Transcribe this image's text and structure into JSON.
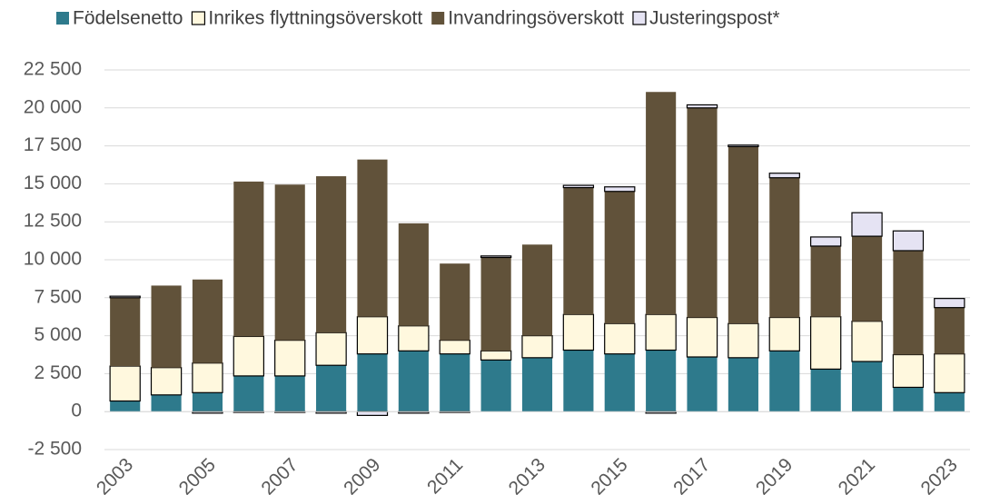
{
  "chart_data": {
    "type": "stacked_bar",
    "categories": [
      "2003",
      null,
      "2005",
      null,
      "2007",
      null,
      "2009",
      null,
      "2011",
      null,
      "2013",
      null,
      "2015",
      null,
      "2017",
      null,
      "2019",
      null,
      "2021",
      null,
      "2023"
    ],
    "series": [
      {
        "name": "Födelsenetto",
        "color": "#2e7a8c",
        "values": [
          700,
          1100,
          1250,
          2350,
          2350,
          3050,
          3800,
          4000,
          3800,
          3400,
          3550,
          4050,
          3800,
          4050,
          3600,
          3550,
          4000,
          2800,
          3300,
          1600,
          1250
        ]
      },
      {
        "name": "Inrikes flyttningsöverskott",
        "color": "#fff8de",
        "values": [
          2300,
          1800,
          1950,
          2600,
          2350,
          2150,
          2450,
          1650,
          900,
          600,
          1450,
          2350,
          2000,
          2350,
          2600,
          2250,
          2200,
          3450,
          2650,
          2150,
          2550
        ]
      },
      {
        "name": "Invandringsöverskott",
        "color": "#61523a",
        "values": [
          4500,
          5400,
          5500,
          10200,
          10250,
          10300,
          10350,
          6750,
          5050,
          6150,
          6000,
          8350,
          8700,
          14650,
          13800,
          11650,
          9200,
          4650,
          5600,
          6850,
          3050
        ]
      },
      {
        "name": "Justeringspost*",
        "color": "#e5e3f3",
        "values": [
          100,
          0,
          -100,
          -50,
          -50,
          -100,
          -250,
          -100,
          -50,
          100,
          0,
          150,
          300,
          -100,
          200,
          100,
          300,
          600,
          1550,
          1300,
          600
        ]
      }
    ],
    "ylim": [
      -2500,
      22500
    ],
    "yticks": [
      {
        "value": -2500,
        "label": "-2 500"
      },
      0,
      {
        "value": 2500,
        "label": "2 500"
      },
      {
        "value": 5000,
        "label": "5 000"
      },
      {
        "value": 7500,
        "label": "7 500"
      },
      {
        "value": 10000,
        "label": "10 000"
      },
      {
        "value": 12500,
        "label": "12 500"
      },
      {
        "value": 15000,
        "label": "15 000"
      },
      {
        "value": 17500,
        "label": "17 500"
      },
      {
        "value": 20000,
        "label": "20 000"
      },
      {
        "value": 22500,
        "label": "22 500"
      }
    ],
    "grid": true,
    "legend": "top"
  }
}
